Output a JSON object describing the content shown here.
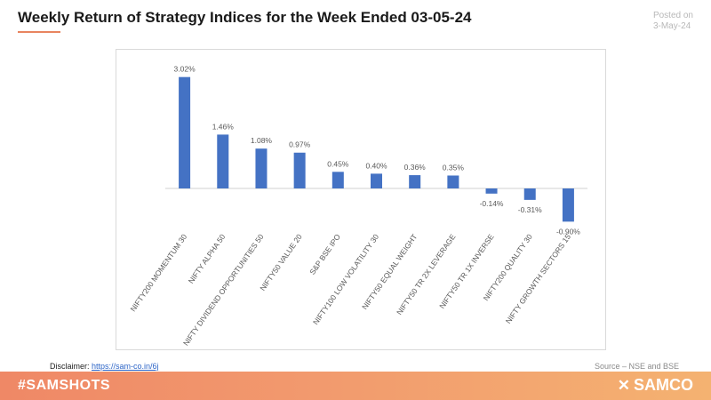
{
  "header": {
    "title": "Weekly Return of Strategy Indices for the Week Ended 03-05-24",
    "posted_label": "Posted on",
    "posted_date": "3-May-24"
  },
  "chart_data": {
    "type": "bar",
    "title": "",
    "xlabel": "",
    "ylabel": "",
    "categories": [
      "NIFTY200 MOMENTUM 30",
      "NIFTY ALPHA 50",
      "NIFTY DIVIDEND OPPORTUNITIES 50",
      "NIFTY50 VALUE 20",
      "S&P BSE IPO",
      "NIFTY100 LOW VOLATILITY 30",
      "NIFTY50 EQUAL WEIGHT",
      "NIFTY50 TR 2X LEVERAGE",
      "NIFTY50 TR 1X INVERSE",
      "NIFTY200 QUALITY 30",
      "NIFTY GROWTH SECTORS 15"
    ],
    "values": [
      3.02,
      1.46,
      1.08,
      0.97,
      0.45,
      0.4,
      0.36,
      0.35,
      -0.14,
      -0.31,
      -0.9
    ],
    "data_labels": [
      "3.02%",
      "1.46%",
      "1.08%",
      "0.97%",
      "0.45%",
      "0.40%",
      "0.36%",
      "0.35%",
      "-0.14%",
      "-0.31%",
      "-0.90%"
    ],
    "unit": "%",
    "ylim": [
      -0.9,
      3.02
    ],
    "grid": false,
    "legend": "none",
    "bar_color": "#4472c4"
  },
  "footer": {
    "disclaimer_label": "Disclaimer:",
    "disclaimer_link": "https://sam-co.in/6j",
    "source": "Source – NSE and BSE",
    "hashtag": "#SAMSHOTS",
    "brand": "SAMCO",
    "brand_icon": "samco-logo-icon"
  }
}
